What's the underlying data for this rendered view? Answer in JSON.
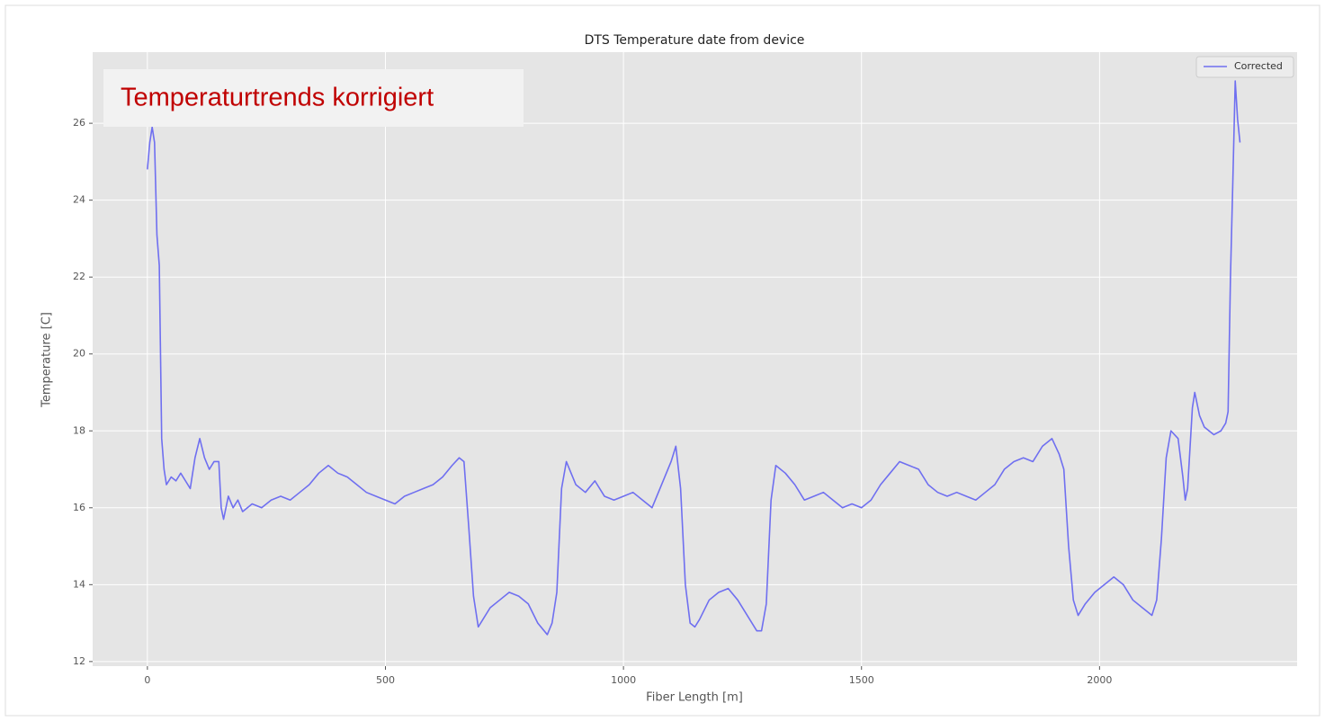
{
  "chart_data": {
    "type": "line",
    "title": "DTS Temperature date from device",
    "annotation": "Temperaturtrends korrigiert",
    "xlabel": "Fiber Length [m]",
    "ylabel": "Temperature [C]",
    "xlim": [
      -115,
      2415
    ],
    "ylim": [
      11.88,
      27.85
    ],
    "xticks": [
      0,
      500,
      1000,
      1500,
      2000
    ],
    "yticks": [
      12,
      14,
      16,
      18,
      20,
      22,
      24,
      26
    ],
    "grid": true,
    "legend": "upper right",
    "x": [
      0,
      5,
      10,
      15,
      20,
      25,
      30,
      35,
      40,
      50,
      60,
      70,
      80,
      90,
      100,
      110,
      120,
      130,
      140,
      150,
      155,
      160,
      170,
      180,
      190,
      200,
      220,
      240,
      260,
      280,
      300,
      320,
      340,
      360,
      380,
      400,
      420,
      440,
      460,
      480,
      500,
      520,
      540,
      560,
      580,
      600,
      620,
      640,
      655,
      665,
      675,
      685,
      695,
      705,
      720,
      740,
      760,
      780,
      800,
      820,
      840,
      850,
      860,
      870,
      880,
      890,
      900,
      920,
      940,
      960,
      980,
      1000,
      1020,
      1040,
      1060,
      1080,
      1100,
      1110,
      1120,
      1130,
      1140,
      1150,
      1160,
      1180,
      1200,
      1220,
      1240,
      1260,
      1280,
      1290,
      1300,
      1310,
      1320,
      1340,
      1360,
      1380,
      1400,
      1420,
      1440,
      1460,
      1480,
      1500,
      1520,
      1540,
      1560,
      1580,
      1600,
      1620,
      1640,
      1660,
      1680,
      1700,
      1720,
      1740,
      1760,
      1780,
      1800,
      1820,
      1840,
      1860,
      1880,
      1900,
      1915,
      1925,
      1935,
      1945,
      1955,
      1970,
      1990,
      2010,
      2030,
      2050,
      2070,
      2090,
      2110,
      2120,
      2130,
      2140,
      2150,
      2165,
      2175,
      2180,
      2185,
      2195,
      2200,
      2210,
      2220,
      2240,
      2255,
      2265,
      2270,
      2275,
      2280,
      2285,
      2290,
      2295
    ],
    "series": [
      {
        "name": "Corrected",
        "color": "#6f6ff0",
        "values": [
          24.8,
          25.5,
          25.9,
          25.5,
          23.1,
          22.3,
          17.8,
          17.0,
          16.6,
          16.8,
          16.7,
          16.9,
          16.7,
          16.5,
          17.3,
          17.8,
          17.3,
          17.0,
          17.2,
          17.2,
          16.0,
          15.7,
          16.3,
          16.0,
          16.2,
          15.9,
          16.1,
          16.0,
          16.2,
          16.3,
          16.2,
          16.4,
          16.6,
          16.9,
          17.1,
          16.9,
          16.8,
          16.6,
          16.4,
          16.3,
          16.2,
          16.1,
          16.3,
          16.4,
          16.5,
          16.6,
          16.8,
          17.1,
          17.3,
          17.2,
          15.5,
          13.7,
          12.9,
          13.1,
          13.4,
          13.6,
          13.8,
          13.7,
          13.5,
          13.0,
          12.7,
          13.0,
          13.8,
          16.5,
          17.2,
          16.9,
          16.6,
          16.4,
          16.7,
          16.3,
          16.2,
          16.3,
          16.4,
          16.2,
          16.0,
          16.6,
          17.2,
          17.6,
          16.5,
          14.0,
          13.0,
          12.9,
          13.1,
          13.6,
          13.8,
          13.9,
          13.6,
          13.2,
          12.8,
          12.8,
          13.5,
          16.2,
          17.1,
          16.9,
          16.6,
          16.2,
          16.3,
          16.4,
          16.2,
          16.0,
          16.1,
          16.0,
          16.2,
          16.6,
          16.9,
          17.2,
          17.1,
          17.0,
          16.6,
          16.4,
          16.3,
          16.4,
          16.3,
          16.2,
          16.4,
          16.6,
          17.0,
          17.2,
          17.3,
          17.2,
          17.6,
          17.8,
          17.4,
          17.0,
          15.0,
          13.6,
          13.2,
          13.5,
          13.8,
          14.0,
          14.2,
          14.0,
          13.6,
          13.4,
          13.2,
          13.6,
          15.2,
          17.3,
          18.0,
          17.8,
          16.8,
          16.2,
          16.5,
          18.6,
          19.0,
          18.4,
          18.1,
          17.9,
          18.0,
          18.2,
          18.5,
          22.0,
          24.5,
          27.1,
          26.1,
          25.5
        ]
      }
    ]
  }
}
